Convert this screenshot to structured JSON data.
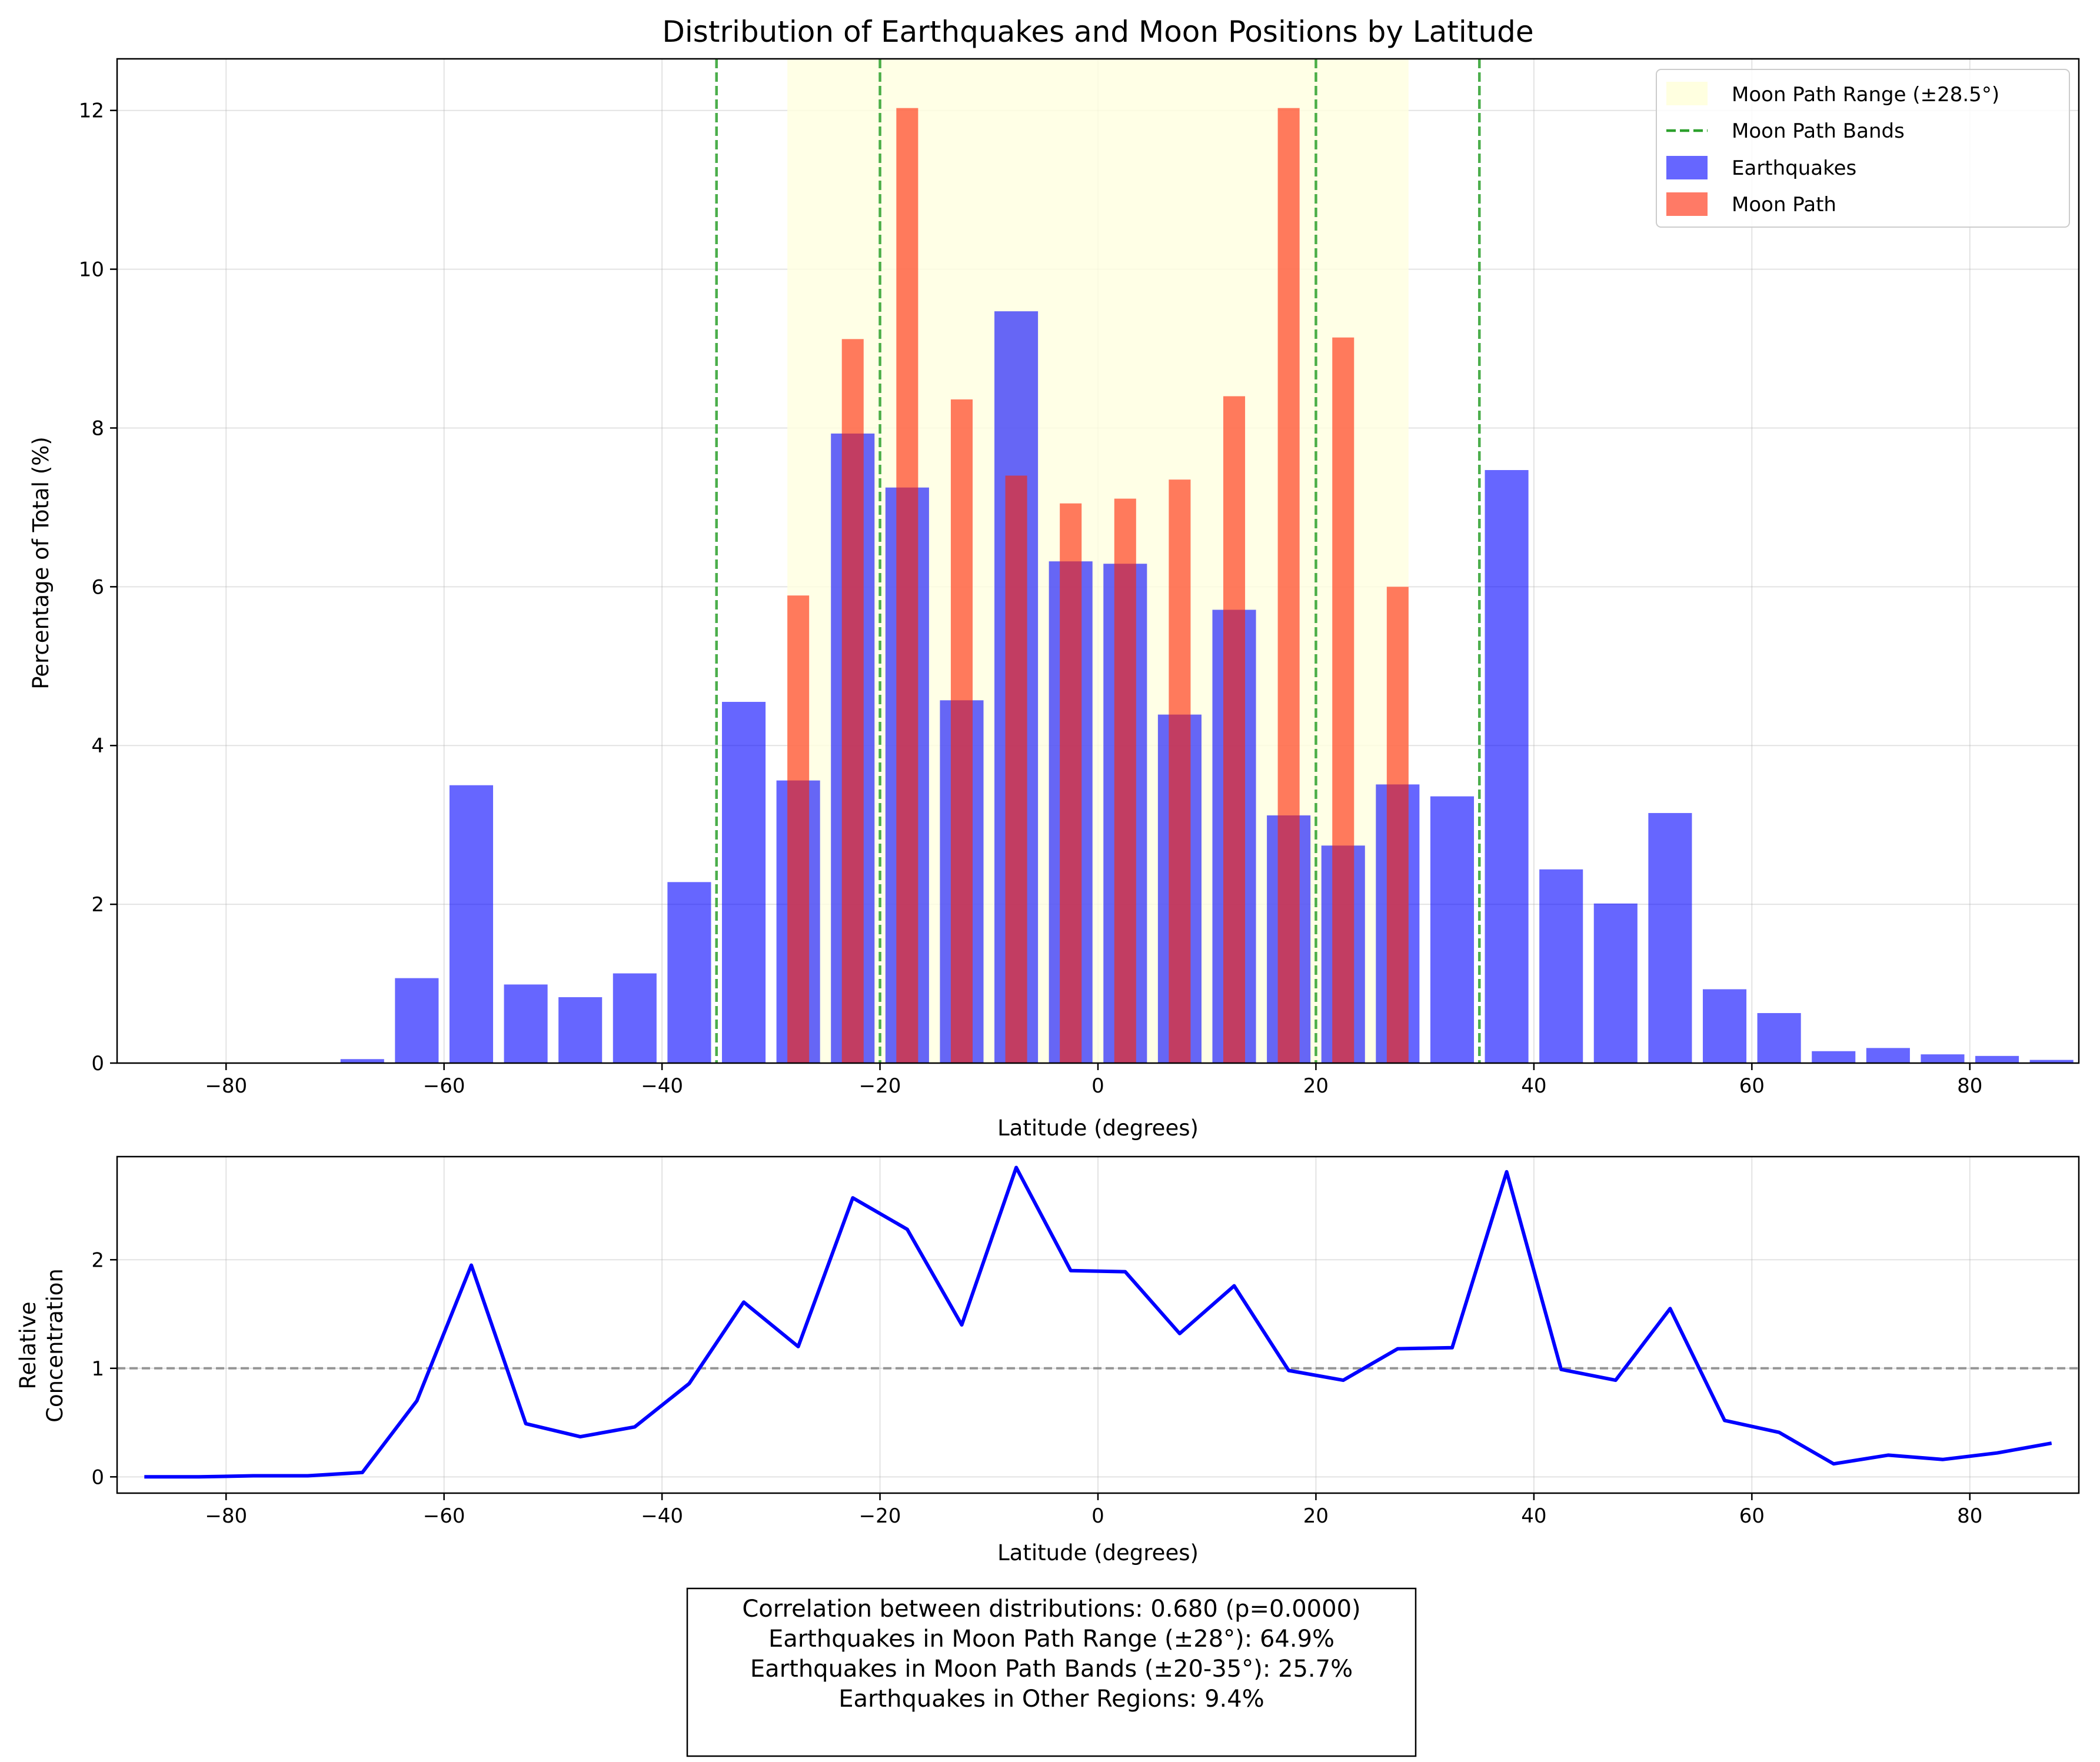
{
  "chart_data": [
    {
      "type": "bar",
      "title": "Distribution of Earthquakes and Moon Positions by Latitude",
      "xlabel": "Latitude (degrees)",
      "ylabel": "Percentage of Total (%)",
      "xlim": [
        -90,
        90
      ],
      "ylim": [
        0,
        12.65
      ],
      "xticks": [
        -80,
        -60,
        -40,
        -20,
        0,
        20,
        40,
        60,
        80
      ],
      "xtick_labels": [
        "−80",
        "−60",
        "−40",
        "−20",
        "0",
        "20",
        "40",
        "60",
        "80"
      ],
      "yticks": [
        0,
        2,
        4,
        6,
        8,
        10,
        12
      ],
      "ytick_labels": [
        "0",
        "2",
        "4",
        "6",
        "8",
        "10",
        "12"
      ],
      "grid": true,
      "legend_position": "top-right",
      "moon_path_range": {
        "label": "Moon Path Range (±28.5°)",
        "from": -28.5,
        "to": 28.5,
        "color": "#ffffe0"
      },
      "moon_path_bands": {
        "label": "Moon Path Bands",
        "positions": [
          -35,
          -20,
          20,
          35
        ],
        "color": "#2ca02c"
      },
      "series": [
        {
          "name": "Earthquakes",
          "color": "#0000ff",
          "x": [
            -87.5,
            -82.5,
            -77.5,
            -72.5,
            -67.5,
            -62.5,
            -57.5,
            -52.5,
            -47.5,
            -42.5,
            -37.5,
            -32.5,
            -27.5,
            -22.5,
            -17.5,
            -12.5,
            -7.5,
            -2.5,
            2.5,
            7.5,
            12.5,
            17.5,
            22.5,
            27.5,
            32.5,
            37.5,
            42.5,
            47.5,
            52.5,
            57.5,
            62.5,
            67.5,
            72.5,
            77.5,
            82.5,
            87.5
          ],
          "values": [
            0,
            0,
            0,
            0,
            0.05,
            1.07,
            3.5,
            0.99,
            0.83,
            1.13,
            2.28,
            4.55,
            3.56,
            7.93,
            7.25,
            4.57,
            9.47,
            6.32,
            6.29,
            4.39,
            5.71,
            3.12,
            2.74,
            3.51,
            3.36,
            7.47,
            2.44,
            2.01,
            3.15,
            0.93,
            0.63,
            0.15,
            0.19,
            0.11,
            0.09,
            0.04
          ]
        },
        {
          "name": "Moon Path",
          "color": "#ff2200",
          "x": [
            -27.5,
            -22.5,
            -17.5,
            -12.5,
            -7.5,
            -2.5,
            2.5,
            7.5,
            12.5,
            17.5,
            22.5,
            27.5
          ],
          "values": [
            5.89,
            9.12,
            12.03,
            8.36,
            7.4,
            7.05,
            7.11,
            7.35,
            8.4,
            12.03,
            9.14,
            6.0
          ]
        }
      ]
    },
    {
      "type": "line",
      "xlabel": "Latitude (degrees)",
      "ylabel_lines": [
        "Relative",
        "Concentration"
      ],
      "xlim": [
        -90,
        90
      ],
      "ylim": [
        -0.15,
        2.95
      ],
      "xticks": [
        -80,
        -60,
        -40,
        -20,
        0,
        20,
        40,
        60,
        80
      ],
      "xtick_labels": [
        "−80",
        "−60",
        "−40",
        "−20",
        "0",
        "20",
        "40",
        "60",
        "80"
      ],
      "yticks": [
        0,
        1,
        2
      ],
      "ytick_labels": [
        "0",
        "1",
        "2"
      ],
      "grid": true,
      "reference_line": 1,
      "series": [
        {
          "color": "#0000ff",
          "x": [
            -87.5,
            -82.5,
            -77.5,
            -72.5,
            -67.5,
            -62.5,
            -57.5,
            -52.5,
            -47.5,
            -42.5,
            -37.5,
            -32.5,
            -27.5,
            -22.5,
            -17.5,
            -12.5,
            -7.5,
            -2.5,
            2.5,
            7.5,
            12.5,
            17.5,
            22.5,
            27.5,
            32.5,
            37.5,
            42.5,
            47.5,
            52.5,
            57.5,
            62.5,
            67.5,
            72.5,
            77.5,
            82.5,
            87.5
          ],
          "values": [
            0,
            0,
            0.01,
            0.01,
            0.04,
            0.7,
            1.95,
            0.49,
            0.37,
            0.46,
            0.86,
            1.61,
            1.2,
            2.57,
            2.28,
            1.4,
            2.85,
            1.9,
            1.89,
            1.32,
            1.76,
            0.98,
            0.89,
            1.18,
            1.19,
            2.81,
            0.99,
            0.89,
            1.55,
            0.52,
            0.41,
            0.12,
            0.2,
            0.16,
            0.22,
            0.31
          ]
        }
      ]
    }
  ],
  "stats": [
    "Correlation between distributions: 0.680 (p=0.0000)",
    "Earthquakes in Moon Path Range (±28°): 64.9%",
    "Earthquakes in Moon Path Bands (±20-35°): 25.7%",
    "Earthquakes in Other Regions: 9.4%"
  ]
}
